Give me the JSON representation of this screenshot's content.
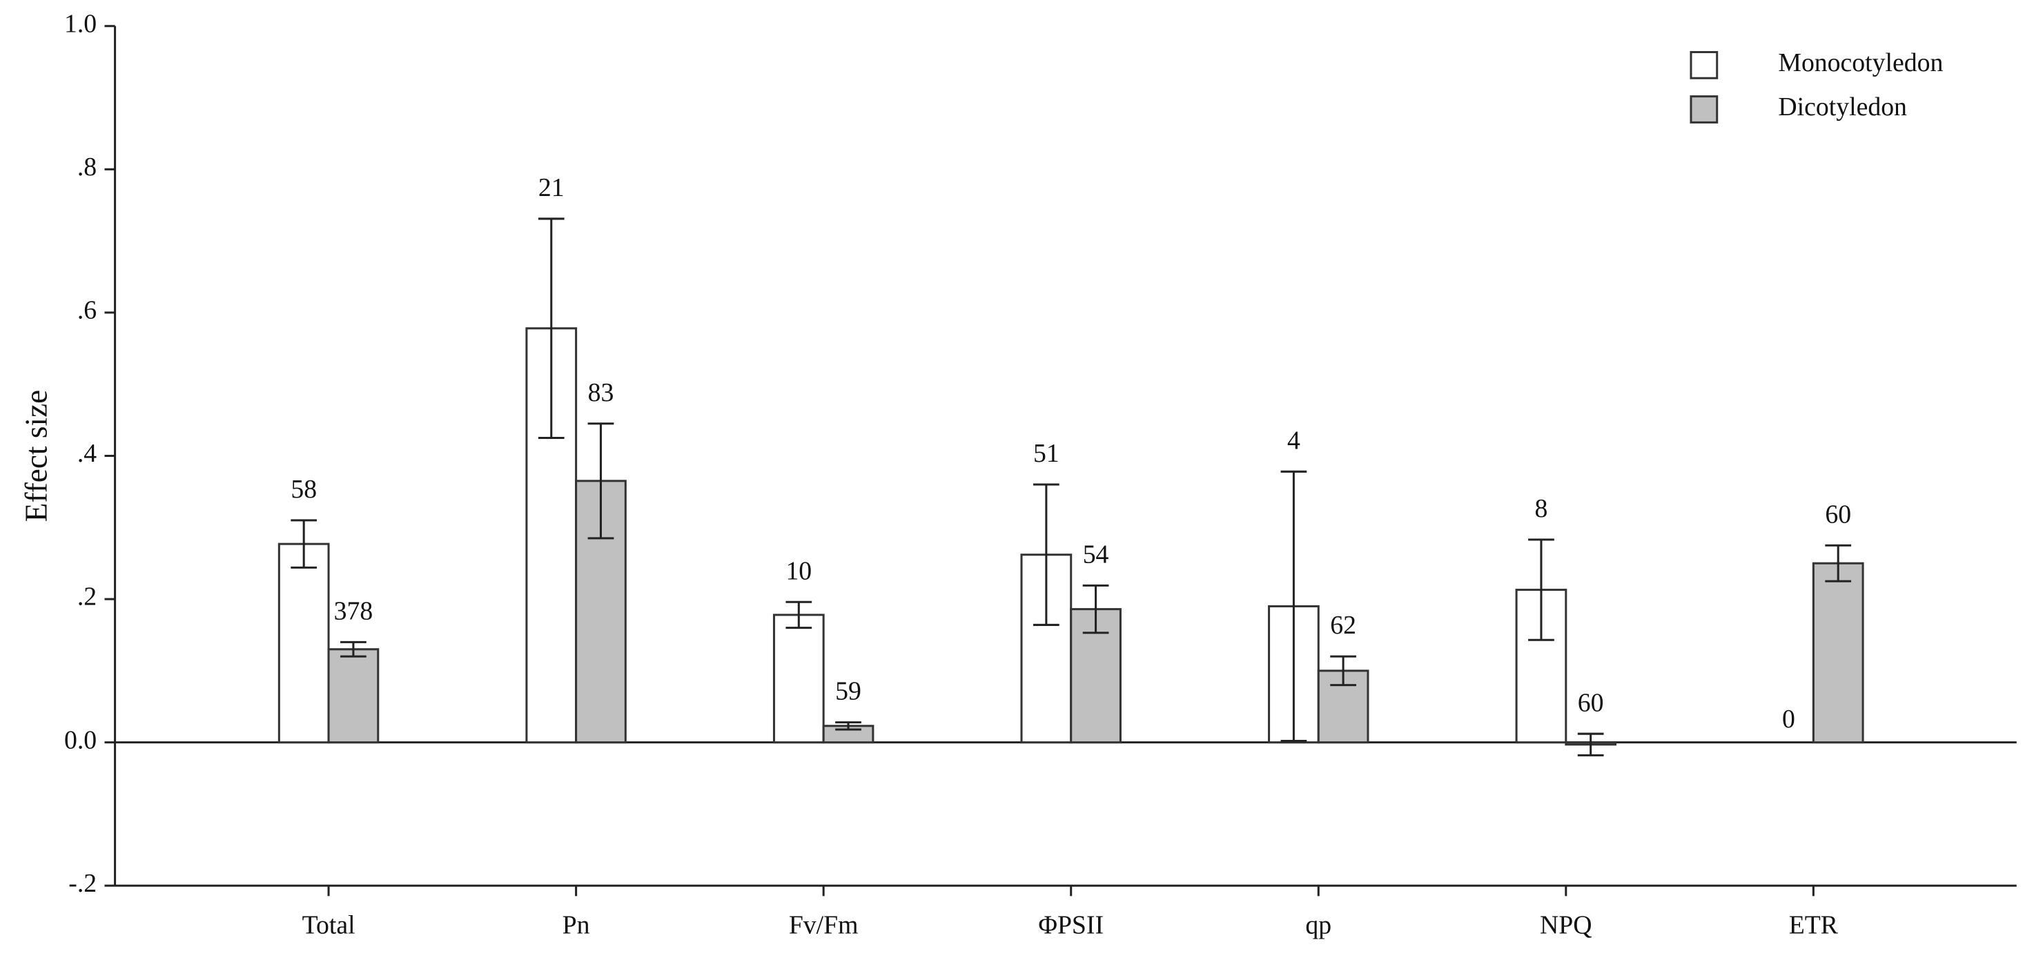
{
  "chart_data": {
    "type": "bar",
    "y_label": "Effect size",
    "categories": [
      "Total",
      "Pn",
      "Fv/Fm",
      "ΦPSII",
      "qp",
      "NPQ",
      "ETR"
    ],
    "series": [
      {
        "name": "Monocotyledon",
        "color": "#ffffff",
        "values": [
          0.277,
          0.578,
          0.178,
          0.262,
          0.19,
          0.213,
          null
        ],
        "errors": [
          0.033,
          0.153,
          0.018,
          0.098,
          0.188,
          0.07,
          null
        ],
        "n": [
          58,
          21,
          10,
          51,
          4,
          8,
          0
        ]
      },
      {
        "name": "Dicotyledon",
        "color": "#c0c0c0",
        "values": [
          0.13,
          0.365,
          0.023,
          0.186,
          0.1,
          -0.003,
          0.25
        ],
        "errors": [
          0.01,
          0.08,
          0.005,
          0.033,
          0.02,
          0.015,
          0.025
        ],
        "n": [
          378,
          83,
          59,
          54,
          62,
          60,
          60
        ]
      }
    ],
    "ylim": [
      -0.2,
      1.0
    ],
    "yticks": [
      {
        "value": -0.2,
        "label": "-.2"
      },
      {
        "value": 0,
        "label": "0.0"
      },
      {
        "value": 0.2,
        "label": ".2"
      },
      {
        "value": 0.4,
        "label": ".4"
      },
      {
        "value": 0.6,
        "label": ".6"
      },
      {
        "value": 0.8,
        "label": ".8"
      },
      {
        "value": 1.0,
        "label": "1.0"
      }
    ],
    "legend": "top-right"
  }
}
